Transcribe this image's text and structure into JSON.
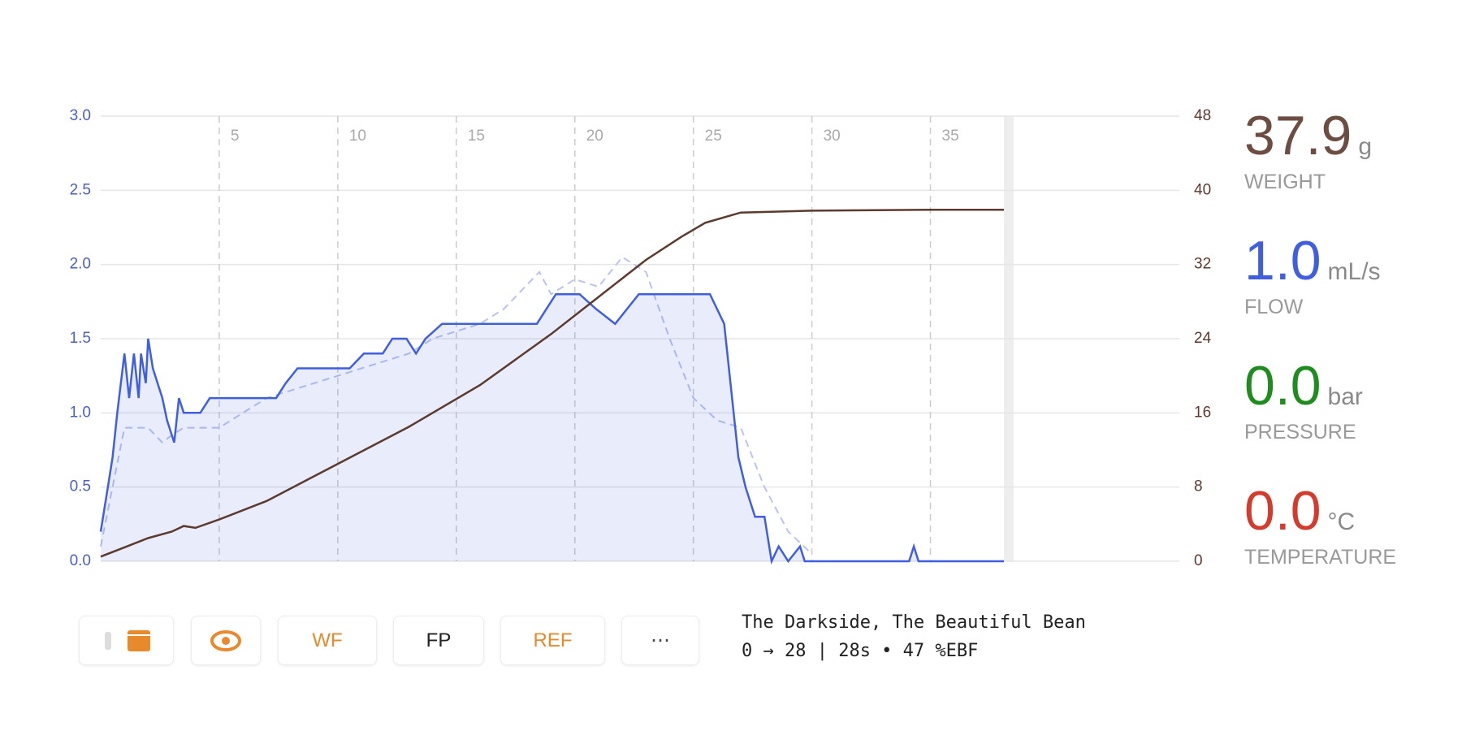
{
  "chart_data": {
    "type": "line",
    "xlim": [
      0,
      45.5
    ],
    "xticks": [
      5,
      10,
      15,
      20,
      25,
      30,
      35
    ],
    "ylim": [
      0,
      3
    ],
    "yticks": [
      {
        "value": 0,
        "label": "0.0"
      },
      0.5,
      {
        "value": 1,
        "label": "1.0"
      },
      1.5,
      {
        "value": 2,
        "label": "2.0"
      },
      2.5,
      {
        "value": 3,
        "label": "3.0"
      }
    ],
    "y2lim": [
      0,
      48
    ],
    "y2ticks": [
      0,
      8,
      16,
      24,
      32,
      40,
      48
    ],
    "grid": true,
    "series": [
      {
        "color": "#b9c4f2",
        "dashed": true,
        "area": false,
        "x": [
          0,
          1,
          2,
          2.6,
          3,
          3.5,
          4,
          5,
          6,
          7,
          8,
          9,
          10,
          11,
          12,
          13,
          14,
          15,
          16,
          17,
          18.5,
          19,
          20,
          21,
          22,
          23,
          24,
          25,
          26,
          27,
          28,
          29,
          30
        ],
        "values": [
          0.1,
          0.9,
          0.9,
          0.8,
          0.85,
          0.9,
          0.9,
          0.9,
          1.0,
          1.1,
          1.15,
          1.2,
          1.25,
          1.3,
          1.35,
          1.4,
          1.5,
          1.55,
          1.6,
          1.7,
          1.95,
          1.8,
          1.9,
          1.85,
          2.05,
          1.95,
          1.5,
          1.1,
          0.95,
          0.9,
          0.5,
          0.2,
          0.05
        ]
      },
      {
        "color": "#3f5fe0",
        "dashed": false,
        "area": true,
        "x": [
          0,
          0.3,
          0.5,
          0.7,
          1.0,
          1.2,
          1.4,
          1.6,
          1.7,
          1.9,
          2.0,
          2.2,
          2.4,
          2.6,
          2.8,
          3.1,
          3.3,
          3.5,
          4.2,
          4.6,
          7.4,
          7.8,
          8.3,
          10.5,
          11.1,
          11.4,
          11.9,
          12.3,
          12.9,
          13.3,
          13.7,
          14.4,
          18.4,
          19.2,
          20.2,
          20.9,
          21.7,
          22.7,
          25.7,
          26.3,
          26.9,
          27.2,
          27.6,
          28.0,
          28.3,
          28.6,
          29.0,
          29.5,
          29.7,
          34.1,
          34.3,
          34.5,
          38.1
        ],
        "values": [
          0.2,
          0.5,
          0.7,
          1.0,
          1.4,
          1.1,
          1.4,
          1.1,
          1.4,
          1.2,
          1.5,
          1.3,
          1.2,
          1.1,
          0.95,
          0.8,
          1.1,
          1.0,
          1.0,
          1.1,
          1.1,
          1.2,
          1.3,
          1.3,
          1.4,
          1.4,
          1.4,
          1.5,
          1.5,
          1.4,
          1.5,
          1.6,
          1.6,
          1.8,
          1.8,
          1.7,
          1.6,
          1.8,
          1.8,
          1.6,
          0.7,
          0.5,
          0.3,
          0.3,
          0.0,
          0.1,
          0.0,
          0.1,
          0.0,
          0.0,
          0.1,
          0.0,
          0.0
        ]
      },
      {
        "color": "#5d3a2e",
        "dashed": false,
        "area": false,
        "axis": "y2",
        "x": [
          0,
          1,
          2,
          3,
          3.5,
          4,
          5,
          7,
          10,
          13,
          16,
          19,
          21,
          23,
          24.5,
          25.5,
          27,
          30,
          35,
          38.1
        ],
        "values": [
          0.5,
          1.5,
          2.5,
          3.2,
          3.8,
          3.6,
          4.5,
          6.5,
          10.5,
          14.5,
          19,
          24.5,
          28.5,
          32.5,
          35,
          36.5,
          37.6,
          37.8,
          37.9,
          37.9
        ]
      }
    ]
  },
  "readouts": [
    {
      "value": "37.9",
      "unit": "g",
      "label": "WEIGHT",
      "color": "#6d4c41"
    },
    {
      "value": "1.0",
      "unit": "mL/s",
      "label": "FLOW",
      "color": "#3f5fe0"
    },
    {
      "value": "0.0",
      "unit": "bar",
      "label": "PRESSURE",
      "color": "#1e8c1e"
    },
    {
      "value": "0.0",
      "unit": "°C",
      "label": "TEMPERATURE",
      "color": "#d43b2c"
    }
  ],
  "buttons": [
    "WF",
    "FP",
    "REF",
    "⋯"
  ],
  "footer": {
    "title": "The Darkside, The Beautiful Bean",
    "summary": "0 → 28 | 28s • 47 %EBF"
  }
}
